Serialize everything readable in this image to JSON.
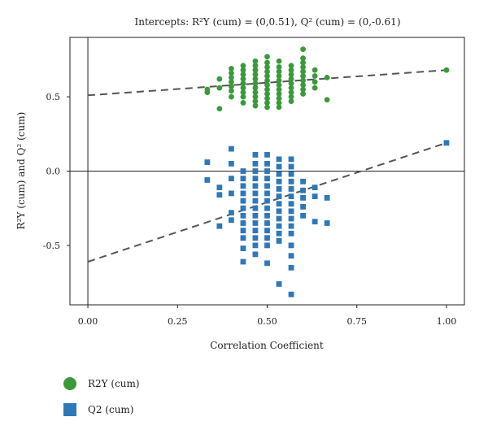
{
  "chart_data": {
    "type": "scatter",
    "title": "Intercepts: R²Y (cum) = (0,0.51), Q² (cum) = (0,-0.61)",
    "xlabel": "Correlation Coefficient",
    "ylabel": "R²Y (cum) and Q² (cum)",
    "xlim": [
      -0.05,
      1.05
    ],
    "ylim": [
      -0.9,
      0.9
    ],
    "x_ticks": [
      0.0,
      0.25,
      0.5,
      0.75,
      1.0
    ],
    "x_tick_labels": [
      "0.00",
      "0.25",
      "0.50",
      "0.75",
      "1.00"
    ],
    "y_ticks": [
      -0.5,
      0.0,
      0.5
    ],
    "y_tick_labels": [
      "-0.5",
      "0.0",
      "0.5"
    ],
    "reference_lines": {
      "x": 0,
      "y": 0
    },
    "legend_position": "bottom-left",
    "series": [
      {
        "name": "R2Y (cum)",
        "marker": "circle",
        "color": "#3a9a3a",
        "intercept_line": {
          "from": [
            0,
            0.51
          ],
          "to": [
            1.0,
            0.68
          ]
        },
        "points": [
          [
            0.333,
            0.53
          ],
          [
            0.333,
            0.55
          ],
          [
            0.367,
            0.42
          ],
          [
            0.367,
            0.56
          ],
          [
            0.367,
            0.62
          ],
          [
            0.4,
            0.5
          ],
          [
            0.4,
            0.54
          ],
          [
            0.4,
            0.57
          ],
          [
            0.4,
            0.6
          ],
          [
            0.4,
            0.63
          ],
          [
            0.4,
            0.66
          ],
          [
            0.4,
            0.69
          ],
          [
            0.433,
            0.46
          ],
          [
            0.433,
            0.5
          ],
          [
            0.433,
            0.53
          ],
          [
            0.433,
            0.56
          ],
          [
            0.433,
            0.59
          ],
          [
            0.433,
            0.62
          ],
          [
            0.433,
            0.65
          ],
          [
            0.433,
            0.68
          ],
          [
            0.433,
            0.71
          ],
          [
            0.467,
            0.44
          ],
          [
            0.467,
            0.47
          ],
          [
            0.467,
            0.5
          ],
          [
            0.467,
            0.53
          ],
          [
            0.467,
            0.56
          ],
          [
            0.467,
            0.59
          ],
          [
            0.467,
            0.62
          ],
          [
            0.467,
            0.65
          ],
          [
            0.467,
            0.68
          ],
          [
            0.467,
            0.71
          ],
          [
            0.467,
            0.74
          ],
          [
            0.5,
            0.43
          ],
          [
            0.5,
            0.46
          ],
          [
            0.5,
            0.49
          ],
          [
            0.5,
            0.52
          ],
          [
            0.5,
            0.55
          ],
          [
            0.5,
            0.58
          ],
          [
            0.5,
            0.61
          ],
          [
            0.5,
            0.64
          ],
          [
            0.5,
            0.67
          ],
          [
            0.5,
            0.7
          ],
          [
            0.5,
            0.73
          ],
          [
            0.5,
            0.77
          ],
          [
            0.533,
            0.43
          ],
          [
            0.533,
            0.46
          ],
          [
            0.533,
            0.49
          ],
          [
            0.533,
            0.52
          ],
          [
            0.533,
            0.55
          ],
          [
            0.533,
            0.58
          ],
          [
            0.533,
            0.61
          ],
          [
            0.533,
            0.64
          ],
          [
            0.533,
            0.67
          ],
          [
            0.533,
            0.7
          ],
          [
            0.533,
            0.74
          ],
          [
            0.567,
            0.47
          ],
          [
            0.567,
            0.5
          ],
          [
            0.567,
            0.53
          ],
          [
            0.567,
            0.56
          ],
          [
            0.567,
            0.59
          ],
          [
            0.567,
            0.62
          ],
          [
            0.567,
            0.65
          ],
          [
            0.567,
            0.68
          ],
          [
            0.567,
            0.71
          ],
          [
            0.6,
            0.52
          ],
          [
            0.6,
            0.55
          ],
          [
            0.6,
            0.58
          ],
          [
            0.6,
            0.61
          ],
          [
            0.6,
            0.64
          ],
          [
            0.6,
            0.67
          ],
          [
            0.6,
            0.7
          ],
          [
            0.6,
            0.73
          ],
          [
            0.6,
            0.76
          ],
          [
            0.6,
            0.82
          ],
          [
            0.633,
            0.56
          ],
          [
            0.633,
            0.6
          ],
          [
            0.633,
            0.64
          ],
          [
            0.633,
            0.68
          ],
          [
            0.667,
            0.48
          ],
          [
            0.667,
            0.63
          ],
          [
            1.0,
            0.68
          ]
        ]
      },
      {
        "name": "Q2 (cum)",
        "marker": "square",
        "color": "#2e78b8",
        "intercept_line": {
          "from": [
            0,
            -0.61
          ],
          "to": [
            1.0,
            0.19
          ]
        },
        "points": [
          [
            0.333,
            0.06
          ],
          [
            0.333,
            -0.06
          ],
          [
            0.367,
            -0.11
          ],
          [
            0.367,
            -0.16
          ],
          [
            0.367,
            -0.37
          ],
          [
            0.4,
            0.15
          ],
          [
            0.4,
            0.05
          ],
          [
            0.4,
            -0.05
          ],
          [
            0.4,
            -0.15
          ],
          [
            0.4,
            -0.28
          ],
          [
            0.4,
            -0.33
          ],
          [
            0.433,
            0.0
          ],
          [
            0.433,
            -0.05
          ],
          [
            0.433,
            -0.1
          ],
          [
            0.433,
            -0.15
          ],
          [
            0.433,
            -0.2
          ],
          [
            0.433,
            -0.25
          ],
          [
            0.433,
            -0.3
          ],
          [
            0.433,
            -0.35
          ],
          [
            0.433,
            -0.4
          ],
          [
            0.433,
            -0.45
          ],
          [
            0.433,
            -0.52
          ],
          [
            0.433,
            -0.61
          ],
          [
            0.467,
            0.11
          ],
          [
            0.467,
            0.05
          ],
          [
            0.467,
            0.0
          ],
          [
            0.467,
            -0.05
          ],
          [
            0.467,
            -0.1
          ],
          [
            0.467,
            -0.15
          ],
          [
            0.467,
            -0.2
          ],
          [
            0.467,
            -0.25
          ],
          [
            0.467,
            -0.3
          ],
          [
            0.467,
            -0.35
          ],
          [
            0.467,
            -0.4
          ],
          [
            0.467,
            -0.45
          ],
          [
            0.467,
            -0.5
          ],
          [
            0.467,
            -0.56
          ],
          [
            0.5,
            0.11
          ],
          [
            0.5,
            0.05
          ],
          [
            0.5,
            0.0
          ],
          [
            0.5,
            -0.05
          ],
          [
            0.5,
            -0.1
          ],
          [
            0.5,
            -0.15
          ],
          [
            0.5,
            -0.2
          ],
          [
            0.5,
            -0.25
          ],
          [
            0.5,
            -0.3
          ],
          [
            0.5,
            -0.35
          ],
          [
            0.5,
            -0.4
          ],
          [
            0.5,
            -0.45
          ],
          [
            0.5,
            -0.5
          ],
          [
            0.5,
            -0.62
          ],
          [
            0.533,
            0.08
          ],
          [
            0.533,
            0.03
          ],
          [
            0.533,
            -0.02
          ],
          [
            0.533,
            -0.07
          ],
          [
            0.533,
            -0.12
          ],
          [
            0.533,
            -0.17
          ],
          [
            0.533,
            -0.22
          ],
          [
            0.533,
            -0.27
          ],
          [
            0.533,
            -0.32
          ],
          [
            0.533,
            -0.37
          ],
          [
            0.533,
            -0.42
          ],
          [
            0.533,
            -0.47
          ],
          [
            0.533,
            -0.76
          ],
          [
            0.567,
            0.08
          ],
          [
            0.567,
            0.03
          ],
          [
            0.567,
            -0.02
          ],
          [
            0.567,
            -0.07
          ],
          [
            0.567,
            -0.12
          ],
          [
            0.567,
            -0.17
          ],
          [
            0.567,
            -0.22
          ],
          [
            0.567,
            -0.27
          ],
          [
            0.567,
            -0.32
          ],
          [
            0.567,
            -0.37
          ],
          [
            0.567,
            -0.42
          ],
          [
            0.567,
            -0.5
          ],
          [
            0.567,
            -0.57
          ],
          [
            0.567,
            -0.65
          ],
          [
            0.567,
            -0.83
          ],
          [
            0.6,
            -0.07
          ],
          [
            0.6,
            -0.13
          ],
          [
            0.6,
            -0.18
          ],
          [
            0.6,
            -0.24
          ],
          [
            0.6,
            -0.3
          ],
          [
            0.633,
            -0.11
          ],
          [
            0.633,
            -0.17
          ],
          [
            0.633,
            -0.34
          ],
          [
            0.667,
            -0.18
          ],
          [
            0.667,
            -0.35
          ],
          [
            1.0,
            0.19
          ]
        ]
      }
    ]
  }
}
